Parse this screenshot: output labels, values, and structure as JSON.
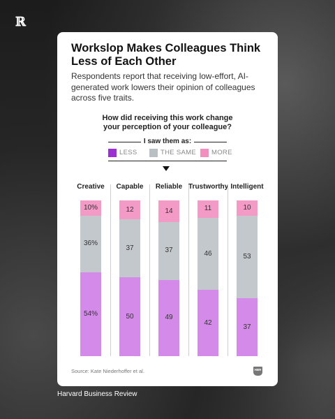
{
  "footer_text": "Harvard Business Review",
  "colors": {
    "less": "#d38ae8",
    "same": "#c2c8cc",
    "more": "#f39ac6",
    "less_swatch": "#9b2fd3",
    "same_swatch": "#b9c0c4",
    "more_swatch": "#f38fbf"
  },
  "chart_data": {
    "type": "bar",
    "stacked": true,
    "title": "Workslop Makes Colleagues Think Less of Each Other",
    "subtitle": "Respondents report that receiving low-effort, AI-generated work lowers their opinion of colleagues across five traits.",
    "question": [
      "How did receiving this work change",
      "your perception of your colleague?"
    ],
    "legend_title": "I saw them as:",
    "categories": [
      "Creative",
      "Capable",
      "Reliable",
      "Trustworthy",
      "Intelligent"
    ],
    "series": [
      {
        "name": "LESS",
        "values": [
          54,
          50,
          49,
          42,
          37
        ]
      },
      {
        "name": "THE SAME",
        "values": [
          36,
          37,
          37,
          46,
          53
        ]
      },
      {
        "name": "MORE",
        "values": [
          10,
          12,
          14,
          11,
          10
        ]
      }
    ],
    "value_labels": [
      [
        "54%",
        "50",
        "49",
        "42",
        "37"
      ],
      [
        "36%",
        "37",
        "37",
        "46",
        "53"
      ],
      [
        "10%",
        "12",
        "14",
        "11",
        "10"
      ]
    ],
    "source": "Source: Kate Niederhoffer et al.",
    "brand_badge": "HBR"
  }
}
